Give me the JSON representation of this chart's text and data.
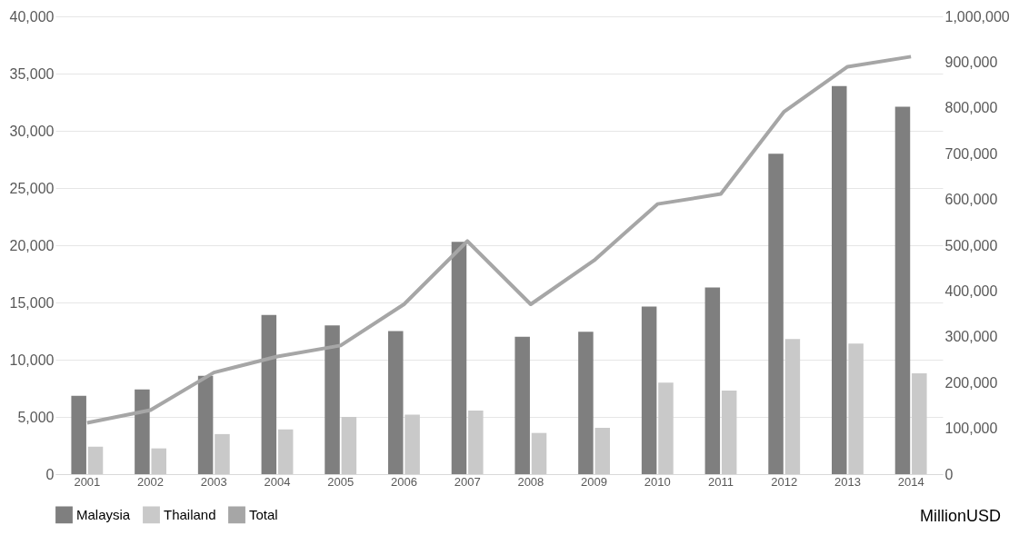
{
  "chart_data": {
    "type": "bar",
    "categories": [
      "2001",
      "2002",
      "2003",
      "2004",
      "2005",
      "2006",
      "2007",
      "2008",
      "2009",
      "2010",
      "2011",
      "2012",
      "2013",
      "2014"
    ],
    "series": [
      {
        "name": "Malaysia",
        "color": "#7f7f7f",
        "values": [
          6850,
          7400,
          8600,
          13900,
          13000,
          12500,
          20300,
          12000,
          12450,
          14650,
          16300,
          28000,
          33900,
          32100
        ]
      },
      {
        "name": "Thailand",
        "color": "#c9c9c9",
        "values": [
          2400,
          2250,
          3500,
          3900,
          5000,
          5200,
          5550,
          3600,
          4050,
          8000,
          7300,
          11800,
          11400,
          8800
        ]
      },
      {
        "name": "Total",
        "type": "line",
        "axis": "y2",
        "color": "#a6a6a6",
        "values": [
          112000,
          140000,
          222000,
          257000,
          281000,
          371000,
          509000,
          371000,
          467000,
          590000,
          612000,
          792000,
          890000,
          912000
        ]
      }
    ],
    "ylim": [
      0,
      40000
    ],
    "yticks": [
      0,
      {
        "value": 5000,
        "label": "5,000"
      },
      {
        "value": 10000,
        "label": "10,000"
      },
      {
        "value": 15000,
        "label": "15,000"
      },
      {
        "value": 20000,
        "label": "20,000"
      },
      {
        "value": 25000,
        "label": "25,000"
      },
      {
        "value": 30000,
        "label": "30,000"
      },
      {
        "value": 35000,
        "label": "35,000"
      },
      {
        "value": 40000,
        "label": "40,000"
      }
    ],
    "y2lim": [
      0,
      1000000
    ],
    "y2ticks": [
      0,
      {
        "value": 100000,
        "label": "100,000"
      },
      {
        "value": 200000,
        "label": "200,000"
      },
      {
        "value": 300000,
        "label": "300,000"
      },
      {
        "value": 400000,
        "label": "400,000"
      },
      {
        "value": 500000,
        "label": "500,000"
      },
      {
        "value": 600000,
        "label": "600,000"
      },
      {
        "value": 700000,
        "label": "700,000"
      },
      {
        "value": 800000,
        "label": "800,000"
      },
      {
        "value": 900000,
        "label": "900,000"
      },
      {
        "value": 1000000,
        "label": "1,000,000"
      }
    ],
    "grid": "y",
    "legend": "bottom",
    "annotations": [
      "MillionUSD"
    ]
  }
}
